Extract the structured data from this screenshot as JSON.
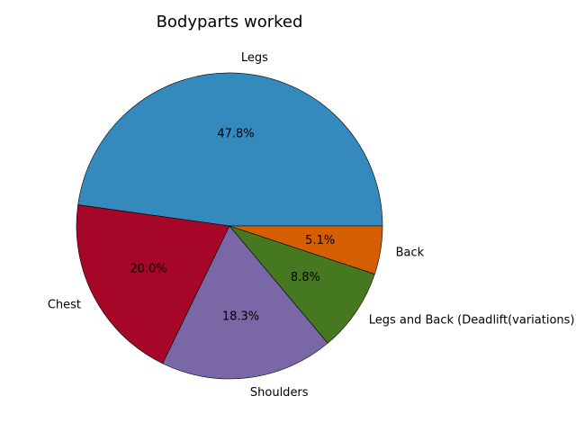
{
  "chart_data": {
    "type": "pie",
    "title": "Bodyparts worked",
    "slices": [
      {
        "label": "Legs",
        "pct_label": "47.8%",
        "value": 47.8,
        "color": "#348abd"
      },
      {
        "label": "Chest",
        "pct_label": "20.0%",
        "value": 20.0,
        "color": "#a60628"
      },
      {
        "label": "Shoulders",
        "pct_label": "18.3%",
        "value": 18.3,
        "color": "#7a68a6"
      },
      {
        "label": "Legs and Back (Deadlift(variations))",
        "pct_label": "8.8%",
        "value": 8.8,
        "color": "#467821"
      },
      {
        "label": "Back",
        "pct_label": "5.1%",
        "value": 5.1,
        "color": "#d55e00"
      }
    ],
    "start_angle_deg": 0,
    "direction": "counterclockwise",
    "edge_color": "#000000"
  }
}
